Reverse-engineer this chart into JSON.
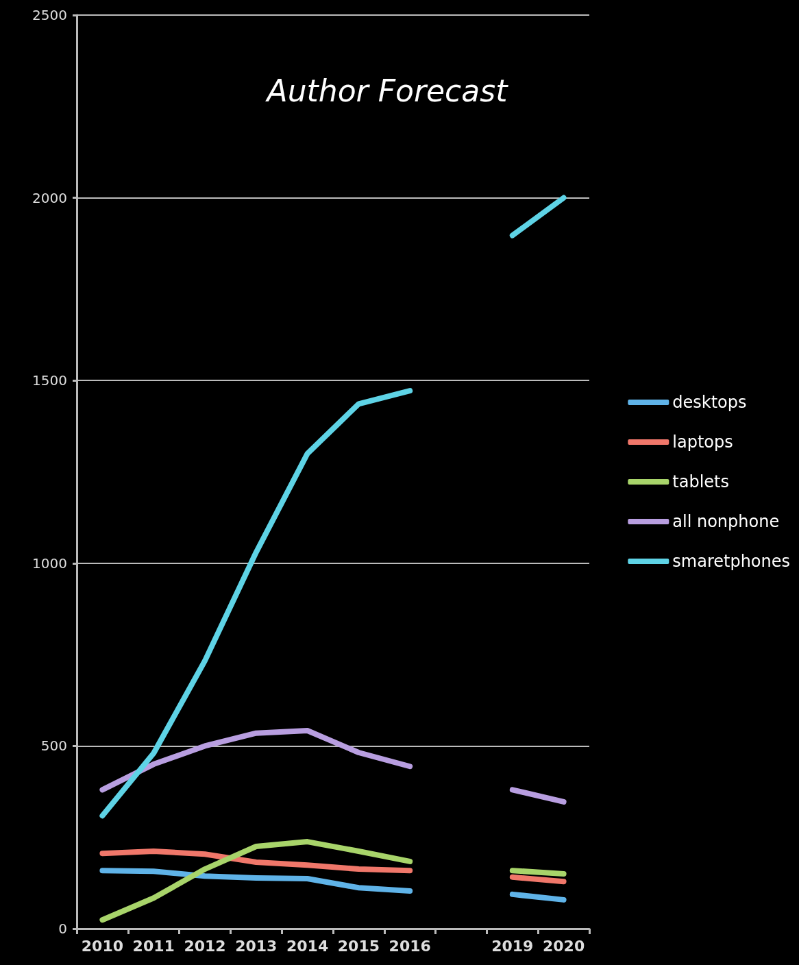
{
  "chart_data": {
    "type": "line",
    "title": "Author Forecast",
    "categories": [
      "2010",
      "2011",
      "2012",
      "2013",
      "2014",
      "2015",
      "2016",
      null,
      "2019",
      "2020"
    ],
    "series": [
      {
        "name": "desktops",
        "color": "#5fb3e8",
        "values": [
          159,
          157,
          144,
          139,
          137,
          112,
          103,
          null,
          94,
          79
        ]
      },
      {
        "name": "laptops",
        "color": "#f0776a",
        "values": [
          206,
          212,
          204,
          182,
          174,
          163,
          159,
          null,
          141,
          129
        ]
      },
      {
        "name": "tablets",
        "color": "#a8d46a",
        "values": [
          24,
          84,
          163,
          225,
          238,
          212,
          184,
          null,
          159,
          150
        ]
      },
      {
        "name": "all nonphone",
        "color": "#b89ee0",
        "values": [
          380,
          450,
          500,
          535,
          542,
          482,
          444,
          null,
          380,
          347
        ]
      },
      {
        "name": "smaretphones",
        "color": "#5ed3e6",
        "values": [
          309,
          480,
          733,
          1030,
          1300,
          1436,
          1472,
          null,
          1897,
          2000
        ]
      }
    ],
    "ylim": [
      0,
      2500
    ],
    "yticks": [
      0,
      500,
      1000,
      1500,
      2000,
      2500
    ],
    "grid": "y",
    "legend": "right",
    "marker": "none",
    "line_style": "solid"
  }
}
